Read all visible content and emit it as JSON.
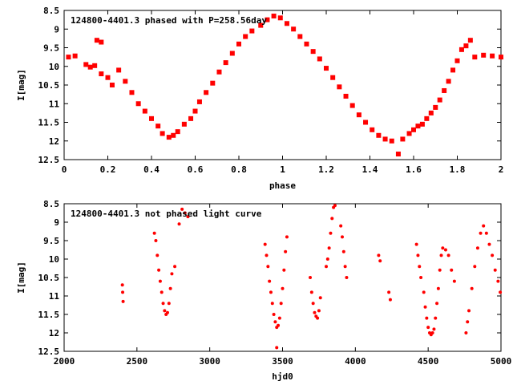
{
  "chart_data": [
    {
      "type": "scatter",
      "title": "124800-4401.3 phased with P=258.56day",
      "xlabel": "phase",
      "ylabel": "I[mag]",
      "xlim": [
        0,
        2
      ],
      "ylim": [
        12.5,
        8.5
      ],
      "y_inverted": true,
      "xticks": [
        "0",
        "0.2",
        "0.4",
        "0.6",
        "0.8",
        "1",
        "1.2",
        "1.4",
        "1.6",
        "1.8",
        "2"
      ],
      "yticks": [
        "8.5",
        "9",
        "9.5",
        "10",
        "10.5",
        "11",
        "11.5",
        "12",
        "12.5"
      ],
      "marker": "filled-square",
      "color": "#ff0000",
      "series": [
        {
          "points": [
            [
              0.02,
              9.75
            ],
            [
              0.05,
              9.72
            ],
            [
              0.1,
              9.95
            ],
            [
              0.12,
              10.02
            ],
            [
              0.14,
              9.98
            ],
            [
              0.15,
              9.3
            ],
            [
              0.17,
              9.35
            ],
            [
              0.17,
              10.2
            ],
            [
              0.2,
              10.3
            ],
            [
              0.22,
              10.5
            ],
            [
              0.25,
              10.1
            ],
            [
              0.28,
              10.4
            ],
            [
              0.31,
              10.7
            ],
            [
              0.34,
              11.0
            ],
            [
              0.37,
              11.2
            ],
            [
              0.4,
              11.4
            ],
            [
              0.43,
              11.6
            ],
            [
              0.45,
              11.8
            ],
            [
              0.48,
              11.9
            ],
            [
              0.5,
              11.85
            ],
            [
              0.52,
              11.75
            ],
            [
              0.55,
              11.55
            ],
            [
              0.58,
              11.4
            ],
            [
              0.6,
              11.2
            ],
            [
              0.62,
              10.95
            ],
            [
              0.65,
              10.7
            ],
            [
              0.68,
              10.45
            ],
            [
              0.71,
              10.15
            ],
            [
              0.74,
              9.9
            ],
            [
              0.77,
              9.65
            ],
            [
              0.8,
              9.4
            ],
            [
              0.83,
              9.2
            ],
            [
              0.86,
              9.05
            ],
            [
              0.9,
              8.9
            ],
            [
              0.93,
              8.75
            ],
            [
              0.96,
              8.65
            ],
            [
              0.99,
              8.7
            ],
            [
              1.02,
              8.85
            ],
            [
              1.05,
              9.0
            ],
            [
              1.08,
              9.2
            ],
            [
              1.11,
              9.4
            ],
            [
              1.14,
              9.6
            ],
            [
              1.17,
              9.8
            ],
            [
              1.2,
              10.05
            ],
            [
              1.23,
              10.3
            ],
            [
              1.26,
              10.55
            ],
            [
              1.29,
              10.8
            ],
            [
              1.32,
              11.05
            ],
            [
              1.35,
              11.3
            ],
            [
              1.38,
              11.5
            ],
            [
              1.41,
              11.7
            ],
            [
              1.44,
              11.85
            ],
            [
              1.47,
              11.95
            ],
            [
              1.5,
              12.0
            ],
            [
              1.53,
              12.35
            ],
            [
              1.55,
              11.95
            ],
            [
              1.58,
              11.8
            ],
            [
              1.6,
              11.7
            ],
            [
              1.62,
              11.6
            ],
            [
              1.64,
              11.55
            ],
            [
              1.66,
              11.4
            ],
            [
              1.68,
              11.25
            ],
            [
              1.7,
              11.1
            ],
            [
              1.72,
              10.9
            ],
            [
              1.74,
              10.65
            ],
            [
              1.76,
              10.4
            ],
            [
              1.78,
              10.1
            ],
            [
              1.8,
              9.85
            ],
            [
              1.82,
              9.55
            ],
            [
              1.84,
              9.45
            ],
            [
              1.86,
              9.3
            ],
            [
              1.88,
              9.75
            ],
            [
              1.92,
              9.7
            ],
            [
              1.96,
              9.72
            ],
            [
              2.0,
              9.75
            ]
          ]
        }
      ]
    },
    {
      "type": "scatter",
      "title": "124800-4401.3 not phased light curve",
      "xlabel": "hjd0",
      "ylabel": "I[mag]",
      "xlim": [
        2000,
        5000
      ],
      "ylim": [
        12.5,
        8.5
      ],
      "y_inverted": true,
      "xticks": [
        "2000",
        "2500",
        "3000",
        "3500",
        "4000",
        "4500",
        "5000"
      ],
      "yticks": [
        "8.5",
        "9",
        "9.5",
        "10",
        "10.5",
        "11",
        "11.5",
        "12",
        "12.5"
      ],
      "marker": "filled-circle",
      "color": "#ff0000",
      "series": [
        {
          "points": [
            [
              2400,
              10.7
            ],
            [
              2402,
              10.9
            ],
            [
              2405,
              11.15
            ],
            [
              2620,
              9.3
            ],
            [
              2630,
              9.5
            ],
            [
              2640,
              9.9
            ],
            [
              2650,
              10.3
            ],
            [
              2660,
              10.6
            ],
            [
              2670,
              10.9
            ],
            [
              2680,
              11.2
            ],
            [
              2690,
              11.4
            ],
            [
              2700,
              11.5
            ],
            [
              2710,
              11.45
            ],
            [
              2720,
              11.2
            ],
            [
              2730,
              10.8
            ],
            [
              2740,
              10.4
            ],
            [
              2760,
              10.2
            ],
            [
              2790,
              9.05
            ],
            [
              2810,
              8.65
            ],
            [
              2830,
              8.75
            ],
            [
              2850,
              8.85
            ],
            [
              3380,
              9.6
            ],
            [
              3390,
              9.9
            ],
            [
              3400,
              10.2
            ],
            [
              3410,
              10.6
            ],
            [
              3420,
              10.9
            ],
            [
              3430,
              11.2
            ],
            [
              3440,
              11.5
            ],
            [
              3450,
              11.7
            ],
            [
              3460,
              11.85
            ],
            [
              3470,
              11.8
            ],
            [
              3480,
              11.6
            ],
            [
              3490,
              11.2
            ],
            [
              3500,
              10.8
            ],
            [
              3510,
              10.3
            ],
            [
              3520,
              9.8
            ],
            [
              3530,
              9.4
            ],
            [
              3460,
              12.4
            ],
            [
              3690,
              10.5
            ],
            [
              3700,
              10.9
            ],
            [
              3710,
              11.2
            ],
            [
              3720,
              11.45
            ],
            [
              3730,
              11.55
            ],
            [
              3740,
              11.6
            ],
            [
              3750,
              11.4
            ],
            [
              3760,
              11.05
            ],
            [
              3800,
              10.2
            ],
            [
              3810,
              10.0
            ],
            [
              3820,
              9.7
            ],
            [
              3830,
              9.3
            ],
            [
              3840,
              8.9
            ],
            [
              3850,
              8.6
            ],
            [
              3860,
              8.55
            ],
            [
              3900,
              9.1
            ],
            [
              3910,
              9.4
            ],
            [
              3920,
              9.8
            ],
            [
              3930,
              10.2
            ],
            [
              3940,
              10.5
            ],
            [
              4160,
              9.9
            ],
            [
              4170,
              10.05
            ],
            [
              4230,
              10.9
            ],
            [
              4240,
              11.1
            ],
            [
              4420,
              9.6
            ],
            [
              4430,
              9.9
            ],
            [
              4440,
              10.2
            ],
            [
              4450,
              10.5
            ],
            [
              4470,
              10.9
            ],
            [
              4480,
              11.3
            ],
            [
              4490,
              11.6
            ],
            [
              4500,
              11.85
            ],
            [
              4510,
              12.0
            ],
            [
              4520,
              12.05
            ],
            [
              4530,
              12.0
            ],
            [
              4540,
              11.9
            ],
            [
              4550,
              11.6
            ],
            [
              4560,
              11.2
            ],
            [
              4570,
              10.8
            ],
            [
              4580,
              10.3
            ],
            [
              4590,
              9.9
            ],
            [
              4600,
              9.7
            ],
            [
              4620,
              9.75
            ],
            [
              4640,
              9.9
            ],
            [
              4660,
              10.3
            ],
            [
              4680,
              10.6
            ],
            [
              4760,
              12.0
            ],
            [
              4770,
              11.7
            ],
            [
              4780,
              11.4
            ],
            [
              4800,
              10.8
            ],
            [
              4820,
              10.2
            ],
            [
              4840,
              9.7
            ],
            [
              4860,
              9.3
            ],
            [
              4880,
              9.1
            ],
            [
              4900,
              9.3
            ],
            [
              4920,
              9.6
            ],
            [
              4940,
              9.9
            ],
            [
              4960,
              10.3
            ],
            [
              4980,
              10.6
            ],
            [
              4995,
              10.9
            ]
          ]
        }
      ]
    }
  ]
}
